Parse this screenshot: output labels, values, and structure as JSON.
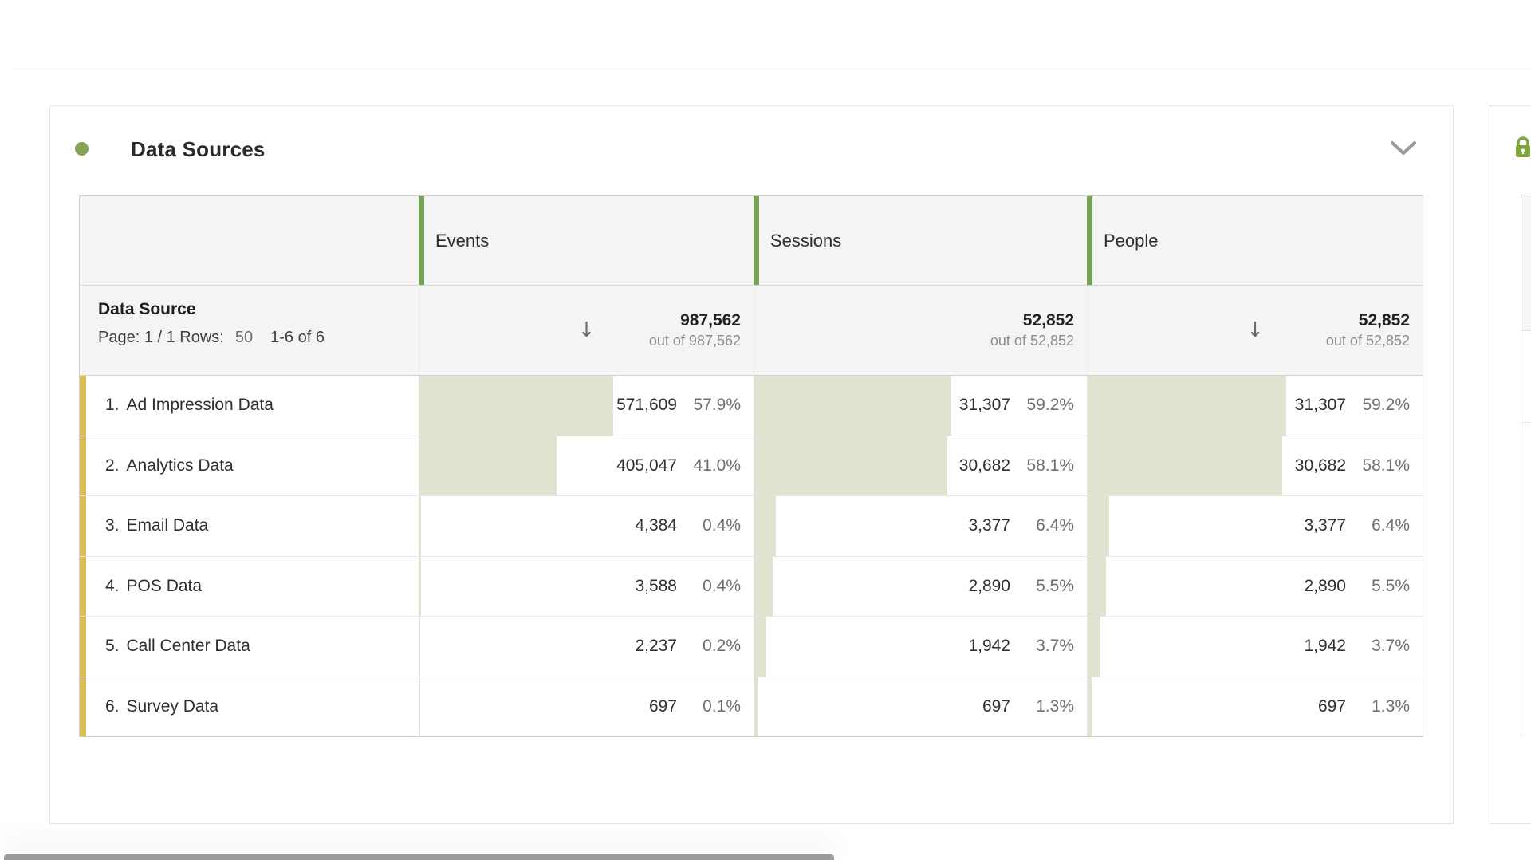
{
  "colors": {
    "accent_dot": "#87a456",
    "column_accent": "#76a355",
    "row_accent": "#d9bd55",
    "bar_fill": "#dfe4d0",
    "lock_green": "#7fa33d"
  },
  "panel": {
    "title": "Data Sources",
    "collapse_icon": "chevron-down"
  },
  "icons": {
    "sort_descending": "↓"
  },
  "table": {
    "row_header": {
      "title": "Data Source",
      "page_label": "Page: 1 / 1 Rows:",
      "rows_per_page": "50",
      "range": "1-6 of 6"
    },
    "columns": [
      {
        "label": "Events",
        "total": "987,562",
        "out_of": "out of 987,562",
        "sorted": true
      },
      {
        "label": "Sessions",
        "total": "52,852",
        "out_of": "out of 52,852",
        "sorted": false
      },
      {
        "label": "People",
        "total": "52,852",
        "out_of": "out of 52,852",
        "sorted": true
      }
    ],
    "rows": [
      {
        "rank": "1.",
        "name": "Ad Impression Data",
        "cells": [
          {
            "value": "571,609",
            "pct": "57.9%",
            "bar": 57.9
          },
          {
            "value": "31,307",
            "pct": "59.2%",
            "bar": 59.2
          },
          {
            "value": "31,307",
            "pct": "59.2%",
            "bar": 59.2
          }
        ]
      },
      {
        "rank": "2.",
        "name": "Analytics Data",
        "cells": [
          {
            "value": "405,047",
            "pct": "41.0%",
            "bar": 41.0
          },
          {
            "value": "30,682",
            "pct": "58.1%",
            "bar": 58.1
          },
          {
            "value": "30,682",
            "pct": "58.1%",
            "bar": 58.1
          }
        ]
      },
      {
        "rank": "3.",
        "name": "Email Data",
        "cells": [
          {
            "value": "4,384",
            "pct": "0.4%",
            "bar": 0.4
          },
          {
            "value": "3,377",
            "pct": "6.4%",
            "bar": 6.4
          },
          {
            "value": "3,377",
            "pct": "6.4%",
            "bar": 6.4
          }
        ]
      },
      {
        "rank": "4.",
        "name": "POS Data",
        "cells": [
          {
            "value": "3,588",
            "pct": "0.4%",
            "bar": 0.4
          },
          {
            "value": "2,890",
            "pct": "5.5%",
            "bar": 5.5
          },
          {
            "value": "2,890",
            "pct": "5.5%",
            "bar": 5.5
          }
        ]
      },
      {
        "rank": "5.",
        "name": "Call Center Data",
        "cells": [
          {
            "value": "2,237",
            "pct": "0.2%",
            "bar": 0.2
          },
          {
            "value": "1,942",
            "pct": "3.7%",
            "bar": 3.7
          },
          {
            "value": "1,942",
            "pct": "3.7%",
            "bar": 3.7
          }
        ]
      },
      {
        "rank": "6.",
        "name": "Survey Data",
        "cells": [
          {
            "value": "697",
            "pct": "0.1%",
            "bar": 0.1
          },
          {
            "value": "697",
            "pct": "1.3%",
            "bar": 1.3
          },
          {
            "value": "697",
            "pct": "1.3%",
            "bar": 1.3
          }
        ]
      }
    ]
  }
}
